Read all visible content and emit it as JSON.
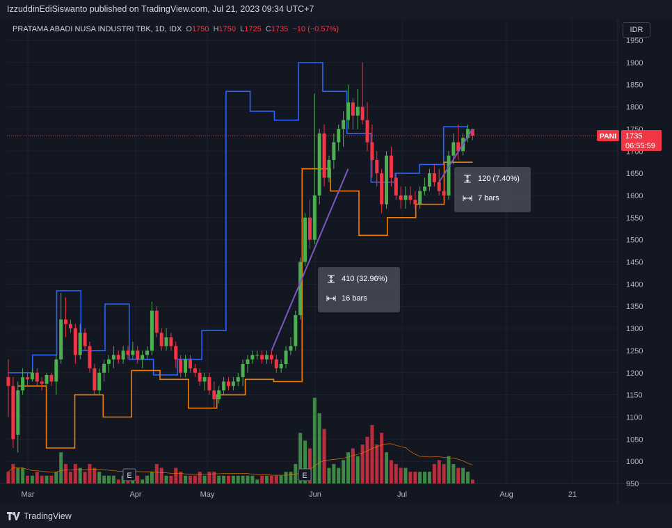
{
  "publisher_line": "IzzuddinEdiSiswanto published on TradingView.com, Jul 21, 2023 09:34 UTC+7",
  "brand": "TradingView",
  "legend": {
    "symbol": "PRATAMA ABADI NUSA INDUSTRI TBK, 1D, IDX",
    "o_label": "O",
    "o_value": "1750",
    "h_label": "H",
    "h_value": "1750",
    "l_label": "L",
    "l_value": "1725",
    "c_label": "C",
    "c_value": "1735",
    "change": "−10 (−0.57%)"
  },
  "currency": "IDR",
  "price_tag": {
    "ticker": "PANI",
    "price": "1735",
    "countdown": "06:55:59"
  },
  "measure_1": {
    "range": "410 (32.96%)",
    "bars": "16 bars"
  },
  "measure_2": {
    "range": "120 (7.40%)",
    "bars": "7 bars"
  },
  "earnings_marker": "E",
  "colors": {
    "up": "#4caf50",
    "down": "#f23645",
    "upper_band": "#2962ff",
    "lower_band": "#f57c00",
    "measure_line": "#7e57c2",
    "volume_ma": "#f57c00"
  },
  "chart_data": {
    "type": "candlestick",
    "y_axis": {
      "min": 950,
      "max": 1950,
      "ticks": [
        "1950",
        "1900",
        "1850",
        "1800",
        "1750",
        "1700",
        "1650",
        "1600",
        "1550",
        "1500",
        "1450",
        "1400",
        "1350",
        "1300",
        "1250",
        "1200",
        "1150",
        "1100",
        "1050",
        "1000",
        "950"
      ]
    },
    "x_axis": {
      "labels": [
        "Mar",
        "Apr",
        "May",
        "Jun",
        "Jul",
        "Aug",
        "21"
      ]
    },
    "candles": [
      [
        1190,
        1230,
        1100,
        1170,
        3
      ],
      [
        1170,
        1190,
        1030,
        1050,
        5
      ],
      [
        1060,
        1180,
        1020,
        1160,
        4
      ],
      [
        1160,
        1210,
        1150,
        1190,
        4
      ],
      [
        1190,
        1200,
        1170,
        1185,
        2
      ],
      [
        1185,
        1210,
        1180,
        1200,
        2
      ],
      [
        1200,
        1210,
        1170,
        1180,
        3
      ],
      [
        1180,
        1190,
        1160,
        1175,
        2
      ],
      [
        1175,
        1200,
        1170,
        1195,
        2
      ],
      [
        1195,
        1200,
        1170,
        1180,
        2
      ],
      [
        1180,
        1240,
        1150,
        1230,
        3
      ],
      [
        1230,
        1380,
        1220,
        1320,
        8
      ],
      [
        1320,
        1370,
        1280,
        1310,
        5
      ],
      [
        1310,
        1320,
        1290,
        1300,
        3
      ],
      [
        1300,
        1310,
        1220,
        1240,
        5
      ],
      [
        1240,
        1310,
        1230,
        1290,
        4
      ],
      [
        1290,
        1300,
        1250,
        1260,
        3
      ],
      [
        1260,
        1270,
        1200,
        1210,
        5
      ],
      [
        1210,
        1220,
        1150,
        1160,
        4
      ],
      [
        1160,
        1210,
        1150,
        1200,
        3
      ],
      [
        1200,
        1230,
        1180,
        1220,
        2
      ],
      [
        1220,
        1240,
        1200,
        1230,
        2
      ],
      [
        1230,
        1260,
        1210,
        1240,
        2
      ],
      [
        1240,
        1250,
        1220,
        1230,
        1
      ],
      [
        1230,
        1260,
        1220,
        1250,
        2
      ],
      [
        1250,
        1260,
        1230,
        1240,
        1
      ],
      [
        1240,
        1270,
        1230,
        1250,
        2
      ],
      [
        1250,
        1260,
        1220,
        1230,
        2
      ],
      [
        1230,
        1250,
        1210,
        1240,
        1
      ],
      [
        1240,
        1260,
        1230,
        1250,
        2
      ],
      [
        1250,
        1360,
        1240,
        1340,
        3
      ],
      [
        1340,
        1350,
        1280,
        1290,
        5
      ],
      [
        1290,
        1300,
        1250,
        1260,
        4
      ],
      [
        1260,
        1300,
        1250,
        1280,
        2
      ],
      [
        1280,
        1290,
        1250,
        1260,
        2
      ],
      [
        1260,
        1270,
        1210,
        1230,
        4
      ],
      [
        1230,
        1240,
        1190,
        1200,
        3
      ],
      [
        1200,
        1240,
        1190,
        1230,
        2
      ],
      [
        1230,
        1240,
        1200,
        1210,
        2
      ],
      [
        1210,
        1220,
        1190,
        1200,
        2
      ],
      [
        1200,
        1210,
        1170,
        1180,
        3
      ],
      [
        1180,
        1200,
        1160,
        1190,
        2
      ],
      [
        1190,
        1200,
        1150,
        1160,
        3
      ],
      [
        1160,
        1180,
        1120,
        1140,
        3
      ],
      [
        1140,
        1170,
        1130,
        1160,
        2
      ],
      [
        1160,
        1190,
        1150,
        1180,
        2
      ],
      [
        1180,
        1190,
        1160,
        1170,
        2
      ],
      [
        1170,
        1190,
        1160,
        1180,
        2
      ],
      [
        1180,
        1200,
        1170,
        1190,
        2
      ],
      [
        1190,
        1230,
        1170,
        1220,
        2
      ],
      [
        1220,
        1240,
        1200,
        1230,
        2
      ],
      [
        1230,
        1250,
        1220,
        1240,
        2
      ],
      [
        1240,
        1250,
        1230,
        1240,
        1
      ],
      [
        1240,
        1250,
        1220,
        1230,
        2
      ],
      [
        1230,
        1250,
        1220,
        1240,
        2
      ],
      [
        1240,
        1250,
        1220,
        1230,
        2
      ],
      [
        1230,
        1240,
        1200,
        1210,
        2
      ],
      [
        1210,
        1230,
        1200,
        1220,
        2
      ],
      [
        1220,
        1260,
        1210,
        1250,
        3
      ],
      [
        1250,
        1280,
        1240,
        1260,
        3
      ],
      [
        1260,
        1340,
        1250,
        1330,
        5
      ],
      [
        1330,
        1460,
        1320,
        1450,
        13
      ],
      [
        1450,
        1560,
        1440,
        1550,
        11
      ],
      [
        1550,
        1590,
        1480,
        1500,
        9
      ],
      [
        1500,
        1830,
        1490,
        1600,
        22
      ],
      [
        1600,
        1750,
        1580,
        1740,
        18
      ],
      [
        1740,
        1760,
        1620,
        1640,
        14
      ],
      [
        1640,
        1690,
        1630,
        1680,
        4
      ],
      [
        1680,
        1740,
        1660,
        1720,
        5
      ],
      [
        1720,
        1760,
        1700,
        1750,
        4
      ],
      [
        1750,
        1790,
        1710,
        1770,
        6
      ],
      [
        1770,
        1850,
        1750,
        1810,
        8
      ],
      [
        1810,
        1820,
        1750,
        1780,
        9
      ],
      [
        1780,
        1840,
        1750,
        1800,
        7
      ],
      [
        1800,
        1900,
        1760,
        1770,
        10
      ],
      [
        1770,
        1810,
        1700,
        1720,
        12
      ],
      [
        1720,
        1760,
        1640,
        1680,
        15
      ],
      [
        1680,
        1700,
        1620,
        1650,
        10
      ],
      [
        1650,
        1660,
        1560,
        1580,
        13
      ],
      [
        1580,
        1700,
        1570,
        1690,
        8
      ],
      [
        1690,
        1710,
        1620,
        1640,
        6
      ],
      [
        1640,
        1650,
        1590,
        1600,
        5
      ],
      [
        1600,
        1620,
        1570,
        1590,
        4
      ],
      [
        1590,
        1620,
        1570,
        1600,
        4
      ],
      [
        1600,
        1620,
        1580,
        1590,
        3
      ],
      [
        1590,
        1610,
        1570,
        1580,
        3
      ],
      [
        1580,
        1620,
        1570,
        1610,
        3
      ],
      [
        1610,
        1640,
        1600,
        1620,
        3
      ],
      [
        1620,
        1660,
        1610,
        1650,
        3
      ],
      [
        1650,
        1670,
        1620,
        1630,
        5
      ],
      [
        1630,
        1660,
        1600,
        1610,
        6
      ],
      [
        1610,
        1630,
        1590,
        1600,
        5
      ],
      [
        1600,
        1700,
        1590,
        1690,
        7
      ],
      [
        1690,
        1740,
        1670,
        1720,
        5
      ],
      [
        1720,
        1760,
        1680,
        1700,
        4
      ],
      [
        1700,
        1740,
        1690,
        1730,
        4
      ],
      [
        1730,
        1760,
        1720,
        1750,
        3
      ],
      [
        1750,
        1750,
        1725,
        1735,
        1
      ]
    ],
    "upper_band_levels": [
      1200,
      1240,
      1385,
      1250,
      1355,
      1230,
      1195,
      1230,
      1295,
      1835,
      1790,
      1770,
      1900,
      1835,
      1740,
      1630,
      1650,
      1670,
      1755
    ],
    "lower_band_levels": [
      1170,
      1030,
      1150,
      1100,
      1205,
      1185,
      1120,
      1150,
      1185,
      1180,
      1660,
      1610,
      1510,
      1550,
      1580,
      1675
    ],
    "volume_ma": "decreasing"
  }
}
